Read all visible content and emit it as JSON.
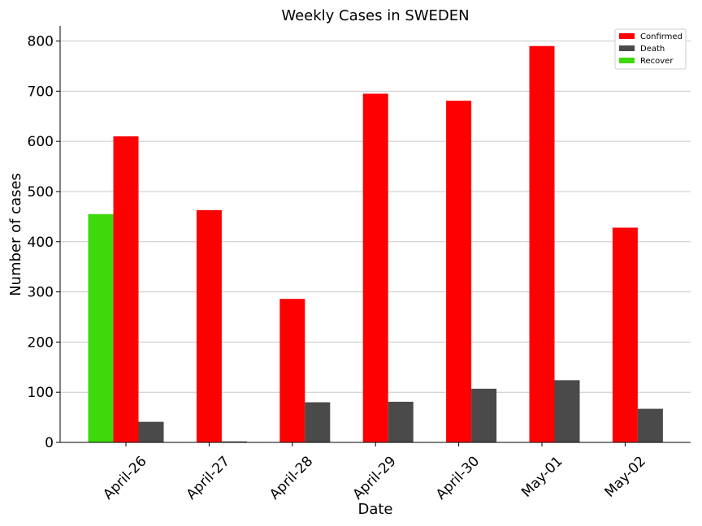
{
  "chart_data": {
    "type": "bar",
    "title": "Weekly Cases in SWEDEN",
    "xlabel": "Date",
    "ylabel": "Number of cases",
    "categories": [
      "April-26",
      "April-27",
      "April-28",
      "April-29",
      "April-30",
      "May-01",
      "May-02"
    ],
    "ylim": [
      0,
      830
    ],
    "yticks": [
      0,
      100,
      200,
      300,
      400,
      500,
      600,
      700,
      800
    ],
    "grid": "horizontal",
    "legend_position": "top-right",
    "series": [
      {
        "name": "Confirmed",
        "color": "#ff0000",
        "values": [
          610,
          463,
          286,
          695,
          681,
          790,
          428
        ]
      },
      {
        "name": "Death",
        "color": "#4a4a4a",
        "values": [
          41,
          2,
          80,
          81,
          107,
          124,
          67
        ]
      },
      {
        "name": "Recover",
        "color": "#3fd80a",
        "values": [
          455,
          0,
          0,
          0,
          0,
          0,
          0
        ]
      }
    ]
  }
}
